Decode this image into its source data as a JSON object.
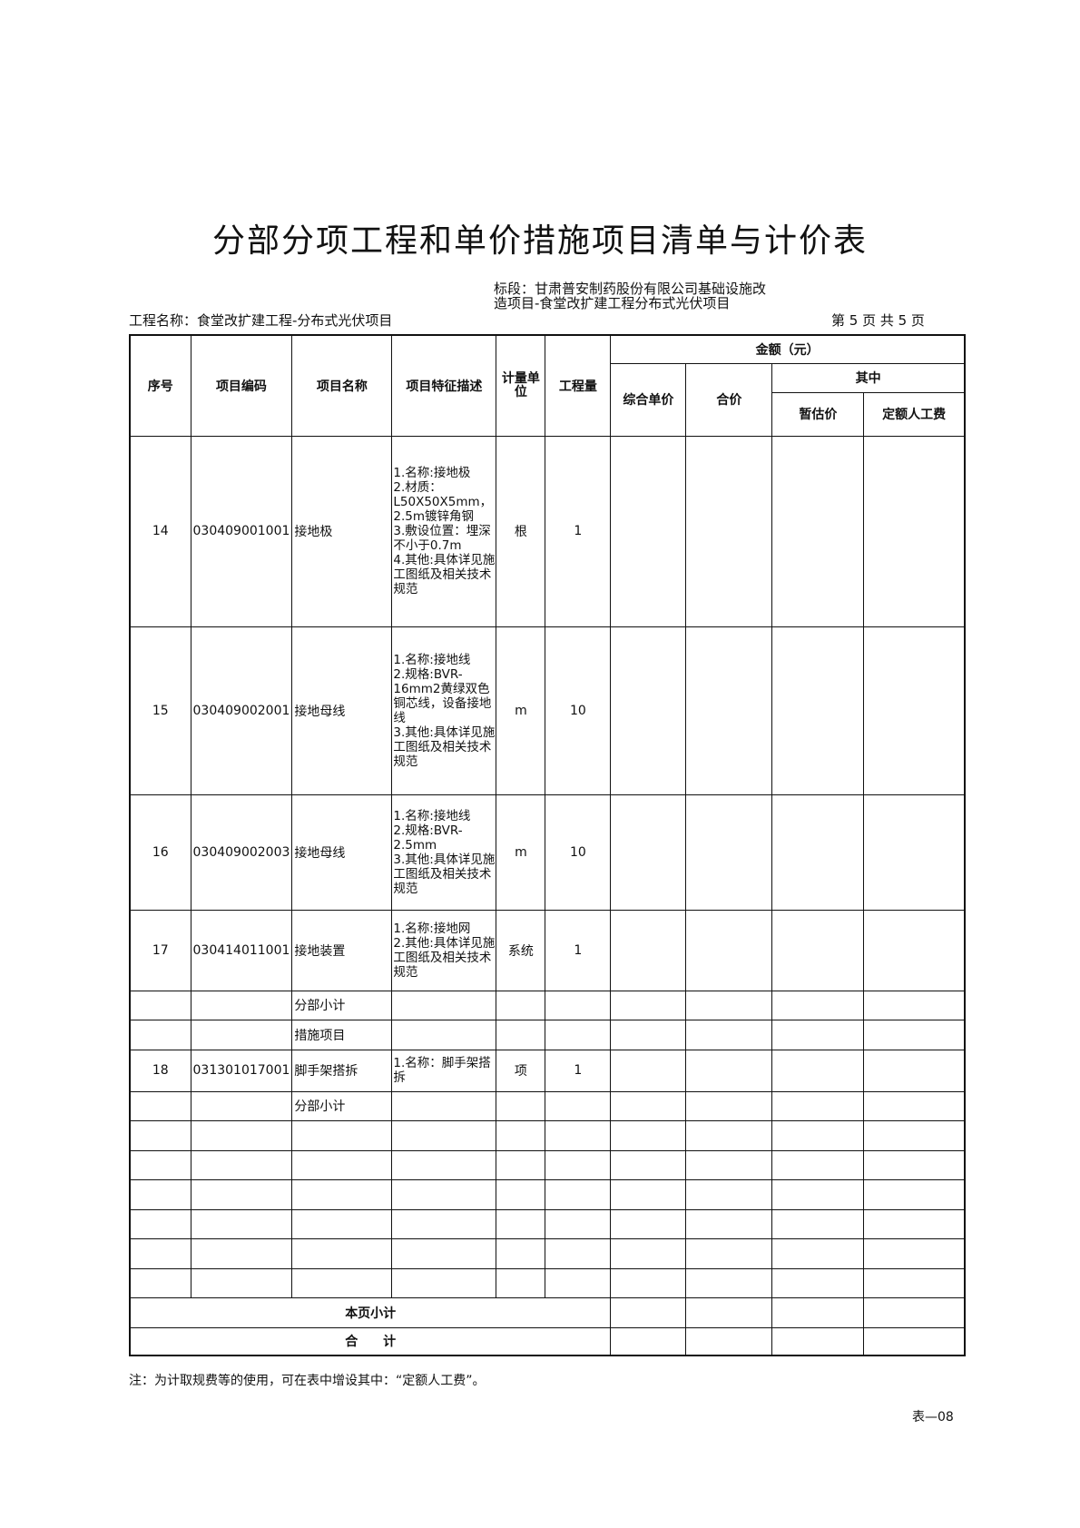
{
  "title": "分部分项工程和单价措施项目清单与计价表",
  "header": {
    "project_name": "工程名称：食堂改扩建工程-分布式光伏项目",
    "section": "标段：甘肃普安制药股份有限公司基础设施改造项目-食堂改扩建工程分布式光伏项目",
    "page": "第 5 页  共 5 页"
  },
  "columns": {
    "seq": "序号",
    "code": "项目编码",
    "name": "项目名称",
    "desc": "项目特征描述",
    "unit": "计量单位",
    "qty": "工程量",
    "amount": "金额（元）",
    "unit_price": "综合单价",
    "total": "合价",
    "of_which": "其中",
    "provisional": "暂估价",
    "labor": "定额人工费"
  },
  "rows": [
    {
      "seq": "14",
      "code": "030409001001",
      "name": "接地极",
      "desc": "1.名称:接地极\n2.材质：L50X50X5mm，2.5m镀锌角钢\n3.敷设位置：埋深不小于0.7m\n4.其他:具体详见施工图纸及相关技术规范",
      "unit": "根",
      "qty": "1"
    },
    {
      "seq": "15",
      "code": "030409002001",
      "name": "接地母线",
      "desc": "1.名称:接地线\n2.规格:BVR-16mm2黄绿双色铜芯线，设备接地线\n3.其他:具体详见施工图纸及相关技术规范",
      "unit": "m",
      "qty": "10"
    },
    {
      "seq": "16",
      "code": "030409002003",
      "name": "接地母线",
      "desc": "1.名称:接地线\n2.规格:BVR-2.5mm\n3.其他:具体详见施工图纸及相关技术规范",
      "unit": "m",
      "qty": "10"
    },
    {
      "seq": "17",
      "code": "030414011001",
      "name": "接地装置",
      "desc": "1.名称:接地网\n2.其他:具体详见施工图纸及相关技术规范",
      "unit": "系统",
      "qty": "1"
    },
    {
      "seq": "",
      "code": "",
      "name": "分部小计",
      "desc": "",
      "unit": "",
      "qty": ""
    },
    {
      "seq": "",
      "code": "",
      "name": "措施项目",
      "desc": "",
      "unit": "",
      "qty": ""
    },
    {
      "seq": "18",
      "code": "031301017001",
      "name": "脚手架搭拆",
      "desc": "1.名称：脚手架搭拆",
      "unit": "项",
      "qty": "1"
    },
    {
      "seq": "",
      "code": "",
      "name": "分部小计",
      "desc": "",
      "unit": "",
      "qty": ""
    },
    {
      "seq": "",
      "code": "",
      "name": "",
      "desc": "",
      "unit": "",
      "qty": ""
    },
    {
      "seq": "",
      "code": "",
      "name": "",
      "desc": "",
      "unit": "",
      "qty": ""
    },
    {
      "seq": "",
      "code": "",
      "name": "",
      "desc": "",
      "unit": "",
      "qty": ""
    },
    {
      "seq": "",
      "code": "",
      "name": "",
      "desc": "",
      "unit": "",
      "qty": ""
    },
    {
      "seq": "",
      "code": "",
      "name": "",
      "desc": "",
      "unit": "",
      "qty": ""
    },
    {
      "seq": "",
      "code": "",
      "name": "",
      "desc": "",
      "unit": "",
      "qty": ""
    }
  ],
  "page_subtotal": "本页小计",
  "grand_total": "合　　计",
  "note": "注：为计取规费等的使用，可在表中增设其中：“定额人工费”。",
  "form_no": "表—08"
}
